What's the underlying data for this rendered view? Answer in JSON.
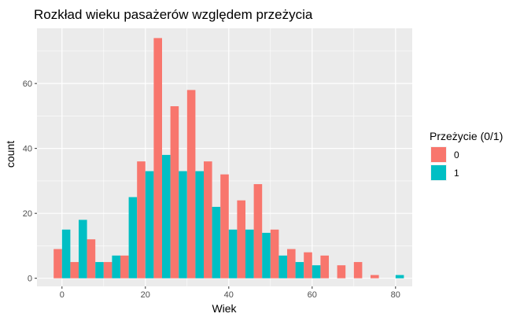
{
  "chart_data": {
    "type": "bar",
    "title": "Rozkład wieku pasażerów względem przeżycia",
    "xlabel": "Wiek",
    "ylabel": "count",
    "xlim": [
      -6,
      84
    ],
    "ylim": [
      -2.5,
      77
    ],
    "x_ticks": [
      0,
      20,
      40,
      60,
      80
    ],
    "y_ticks": [
      0,
      20,
      40,
      60
    ],
    "bin_width": 4,
    "grid": true,
    "legend": {
      "title": "Przeżycie (0/1)",
      "position": "right"
    },
    "bin_centers": [
      0,
      4,
      8,
      12,
      16,
      20,
      24,
      28,
      32,
      36,
      40,
      44,
      48,
      52,
      56,
      60,
      64,
      68,
      72,
      76,
      80
    ],
    "series": [
      {
        "name": "0",
        "color": "#F8766D",
        "values": [
          9,
          5,
          12,
          5,
          7,
          36,
          74,
          53,
          58,
          36,
          32,
          24,
          29,
          15,
          9,
          8,
          7,
          4,
          5,
          1,
          0
        ]
      },
      {
        "name": "1",
        "color": "#00BFC4",
        "values": [
          15,
          18,
          5,
          7,
          25,
          33,
          38,
          33,
          33,
          22,
          15,
          15,
          14,
          7,
          5,
          4,
          0,
          0,
          0,
          0,
          1
        ]
      }
    ]
  }
}
